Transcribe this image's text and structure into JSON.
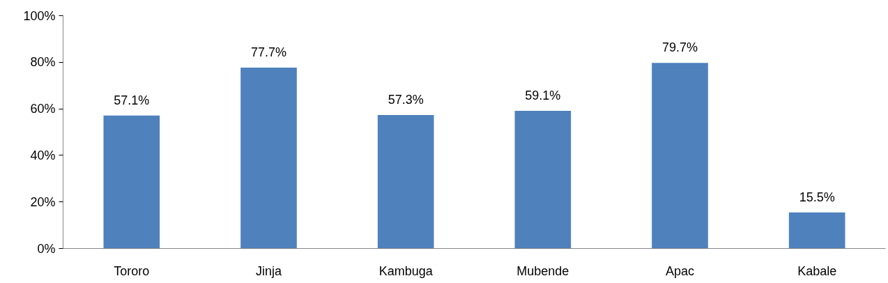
{
  "chart_data": {
    "type": "bar",
    "categories": [
      "Tororo",
      "Jinja",
      "Kambuga",
      "Mubende",
      "Apac",
      "Kabale"
    ],
    "values": [
      57.1,
      77.7,
      57.3,
      59.1,
      79.7,
      15.5
    ],
    "value_labels": [
      "57.1%",
      "77.7%",
      "57.3%",
      "59.1%",
      "79.7%",
      "15.5%"
    ],
    "color": "#4f81bd",
    "ylim": [
      0,
      100
    ],
    "yticks": [
      {
        "value": 0,
        "label": "0%"
      },
      {
        "value": 20,
        "label": "20%"
      },
      {
        "value": 40,
        "label": "40%"
      },
      {
        "value": 60,
        "label": "60%"
      },
      {
        "value": 80,
        "label": "80%"
      },
      {
        "value": 100,
        "label": "100%"
      }
    ],
    "grid": false
  }
}
